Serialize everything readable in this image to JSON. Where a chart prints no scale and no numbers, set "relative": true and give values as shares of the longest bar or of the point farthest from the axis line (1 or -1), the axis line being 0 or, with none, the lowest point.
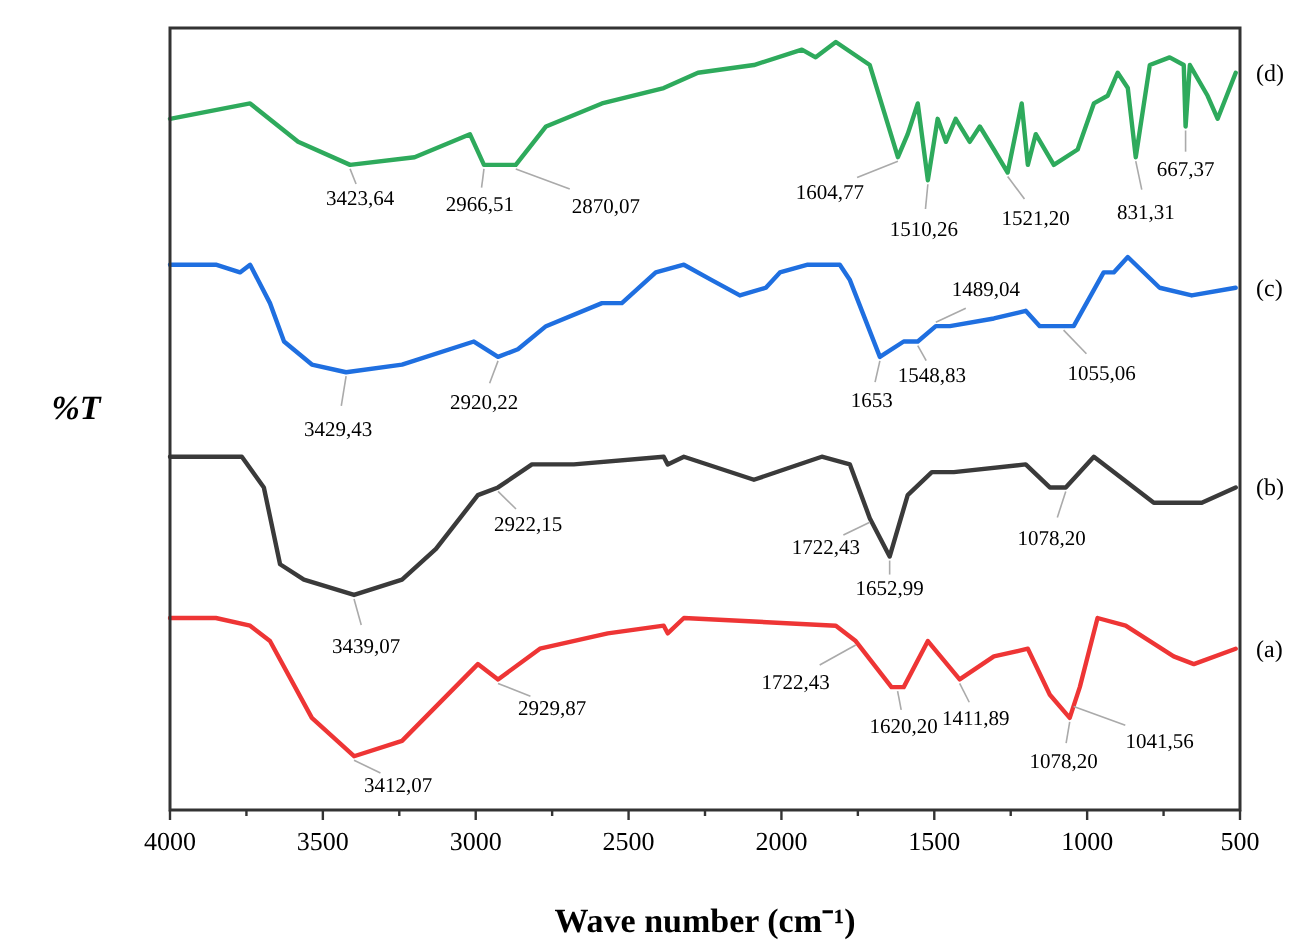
{
  "chart_data": {
    "type": "line",
    "relative": true,
    "xlabel": "Wave number (cm⁻¹)",
    "ylabel": "%T",
    "xlim": [
      4000,
      500
    ],
    "xticks": [
      4000,
      {
        "value": 3750,
        "label": null
      },
      3500,
      {
        "value": 3250,
        "label": null
      },
      3000,
      {
        "value": 2750,
        "label": null
      },
      2500,
      {
        "value": 2250,
        "label": null
      },
      2000,
      {
        "value": 1750,
        "label": null
      },
      1500,
      {
        "value": 1250,
        "label": null
      },
      1000,
      {
        "value": 750,
        "label": null
      },
      500
    ],
    "tick_labels": "x",
    "grid": false,
    "marker": "none",
    "line_style": "solid",
    "series": [
      {
        "name": "(a)",
        "color": "#ee3535",
        "x": [
          4000,
          3850,
          3738,
          3673,
          3536,
          3398,
          3241,
          2993,
          2927,
          2790,
          2568,
          2385,
          2372,
          2319,
          1822,
          1757,
          1640,
          1600,
          1521,
          1417,
          1305,
          1194,
          1122,
          1057,
          1024,
          966,
          874,
          717,
          651,
          514
        ],
        "values": [
          0.25,
          0.25,
          0.24,
          0.22,
          0.12,
          0.07,
          0.09,
          0.19,
          0.17,
          0.21,
          0.23,
          0.24,
          0.23,
          0.25,
          0.24,
          0.22,
          0.16,
          0.16,
          0.22,
          0.17,
          0.2,
          0.21,
          0.15,
          0.12,
          0.16,
          0.25,
          0.24,
          0.2,
          0.19,
          0.21
        ]
      },
      {
        "name": "(b)",
        "color": "#3a3a3a",
        "x": [
          4000,
          3765,
          3693,
          3640,
          3562,
          3398,
          3241,
          3130,
          2993,
          2927,
          2816,
          2679,
          2385,
          2372,
          2319,
          2090,
          1868,
          1776,
          1711,
          1646,
          1587,
          1508,
          1436,
          1201,
          1122,
          1070,
          978,
          782,
          625,
          514
        ],
        "values": [
          0.46,
          0.46,
          0.42,
          0.32,
          0.3,
          0.28,
          0.3,
          0.34,
          0.41,
          0.42,
          0.45,
          0.45,
          0.46,
          0.45,
          0.46,
          0.43,
          0.46,
          0.45,
          0.38,
          0.33,
          0.41,
          0.44,
          0.44,
          0.45,
          0.42,
          0.42,
          0.46,
          0.4,
          0.4,
          0.42
        ]
      },
      {
        "name": "(c)",
        "color": "#1f6fe0",
        "x": [
          4000,
          3850,
          3771,
          3738,
          3673,
          3627,
          3536,
          3424,
          3241,
          3006,
          2927,
          2862,
          2770,
          2587,
          2522,
          2411,
          2319,
          2228,
          2136,
          2051,
          2005,
          1914,
          1809,
          1776,
          1678,
          1600,
          1554,
          1495,
          1449,
          1305,
          1201,
          1155,
          1077,
          1044,
          946,
          913,
          867,
          763,
          658,
          514
        ],
        "values": [
          0.71,
          0.71,
          0.7,
          0.71,
          0.66,
          0.61,
          0.58,
          0.57,
          0.58,
          0.61,
          0.59,
          0.6,
          0.63,
          0.66,
          0.66,
          0.7,
          0.71,
          0.69,
          0.67,
          0.68,
          0.7,
          0.71,
          0.71,
          0.69,
          0.59,
          0.61,
          0.61,
          0.63,
          0.63,
          0.64,
          0.65,
          0.63,
          0.63,
          0.63,
          0.7,
          0.7,
          0.72,
          0.68,
          0.67,
          0.68
        ]
      },
      {
        "name": "(d)",
        "color": "#2eaa5c",
        "x": [
          4000,
          3738,
          3581,
          3411,
          3200,
          3019,
          2973,
          2927,
          2869,
          2770,
          2587,
          2385,
          2273,
          2090,
          1933,
          1888,
          1822,
          1711,
          1665,
          1619,
          1587,
          1554,
          1521,
          1489,
          1462,
          1430,
          1384,
          1351,
          1305,
          1260,
          1214,
          1194,
          1168,
          1109,
          1031,
          978,
          933,
          900,
          867,
          841,
          795,
          730,
          684,
          678,
          664,
          606,
          573,
          514
        ],
        "values": [
          0.9,
          0.92,
          0.87,
          0.84,
          0.85,
          0.88,
          0.84,
          0.84,
          0.84,
          0.89,
          0.92,
          0.94,
          0.96,
          0.97,
          0.99,
          0.98,
          1,
          0.97,
          0.91,
          0.85,
          0.88,
          0.92,
          0.82,
          0.9,
          0.87,
          0.9,
          0.87,
          0.89,
          0.86,
          0.83,
          0.92,
          0.84,
          0.88,
          0.84,
          0.86,
          0.92,
          0.93,
          0.96,
          0.94,
          0.85,
          0.97,
          0.98,
          0.97,
          0.89,
          0.97,
          0.93,
          0.9,
          0.96
        ]
      }
    ],
    "annotations": [
      {
        "text": "3423,64",
        "x": 3411,
        "y": 0.84
      },
      {
        "text": "2966,51",
        "x": 2973,
        "y": 0.84
      },
      {
        "text": "2870,07",
        "x": 2869,
        "y": 0.84
      },
      {
        "text": "1604,77",
        "x": 1619,
        "y": 0.85
      },
      {
        "text": "1510,26",
        "x": 1521,
        "y": 0.82
      },
      {
        "text": "1521,20",
        "x": 1260,
        "y": 0.83
      },
      {
        "text": "831,31",
        "x": 841,
        "y": 0.85
      },
      {
        "text": "667,37",
        "x": 678,
        "y": 0.89
      },
      {
        "text": "3429,43",
        "x": 3424,
        "y": 0.57
      },
      {
        "text": "2920,22",
        "x": 2927,
        "y": 0.59
      },
      {
        "text": "1653",
        "x": 1678,
        "y": 0.59
      },
      {
        "text": "1548,83",
        "x": 1554,
        "y": 0.61
      },
      {
        "text": "1489,04",
        "x": 1495,
        "y": 0.63
      },
      {
        "text": "1055,06",
        "x": 1077,
        "y": 0.63
      },
      {
        "text": "3439,07",
        "x": 3398,
        "y": 0.28
      },
      {
        "text": "2922,15",
        "x": 2927,
        "y": 0.42
      },
      {
        "text": "1722,43",
        "x": 1711,
        "y": 0.38
      },
      {
        "text": "1652,99",
        "x": 1646,
        "y": 0.33
      },
      {
        "text": "1078,20",
        "x": 1070,
        "y": 0.42
      },
      {
        "text": "3412,07",
        "x": 3398,
        "y": 0.07
      },
      {
        "text": "2929,87",
        "x": 2927,
        "y": 0.17
      },
      {
        "text": "1722,43",
        "x": 1757,
        "y": 0.22
      },
      {
        "text": "1620,20",
        "x": 1620,
        "y": 0.16
      },
      {
        "text": "1411,89",
        "x": 1417,
        "y": 0.17
      },
      {
        "text": "1078,20",
        "x": 1057,
        "y": 0.12
      },
      {
        "text": "1041,56",
        "x": 1044,
        "y": 0.14
      }
    ]
  }
}
